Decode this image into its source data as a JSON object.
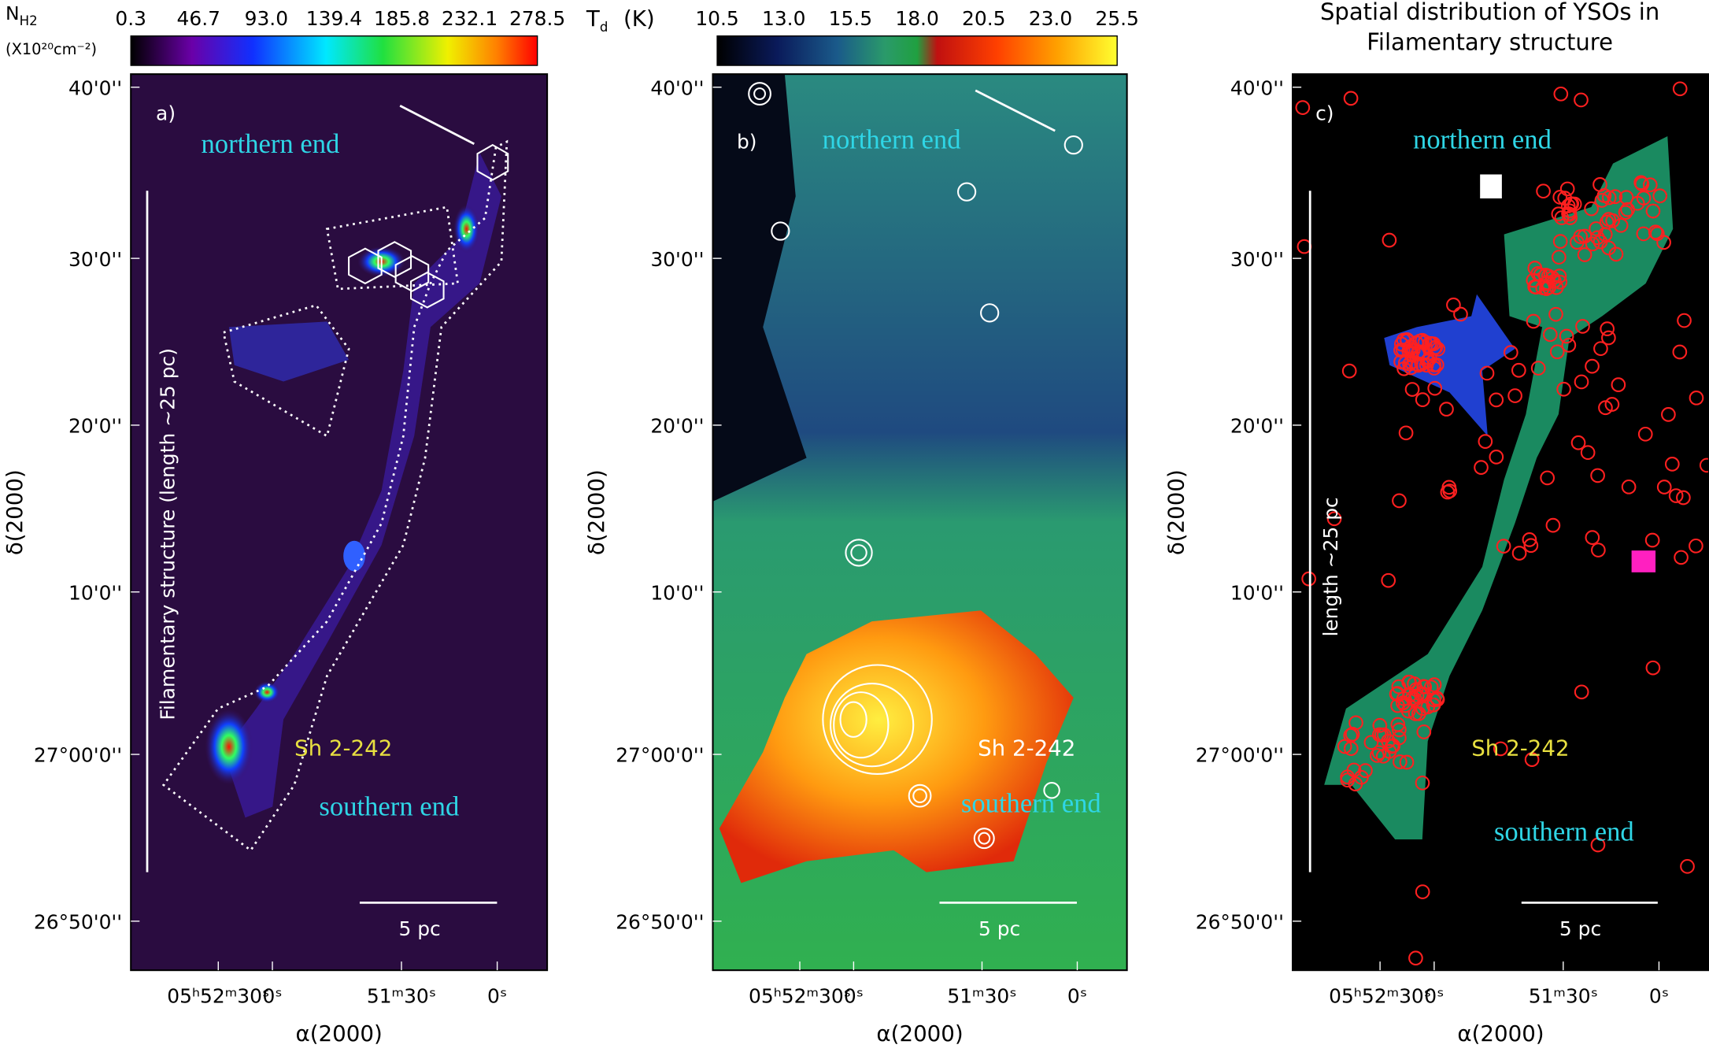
{
  "figure": {
    "panels": [
      {
        "label": "a)",
        "colorbar": {
          "quantity": "N",
          "subscript": "H2",
          "unit": "(X10²⁰cm⁻²)",
          "ticks": [
            "0.3",
            "46.7",
            "93.0",
            "139.4",
            "185.8",
            "232.1",
            "278.5"
          ]
        },
        "yaxis_label": "δ(2000)",
        "xaxis_label": "α(2000)",
        "yticks": [
          "40'0''",
          "30'0''",
          "20'0''",
          "10'0''",
          "27°00'0''",
          "26°50'0''"
        ],
        "xticks": [
          "05ʰ52ᵐ30ˢ",
          "0ˢ",
          "51ᵐ30ˢ",
          "0ˢ"
        ],
        "annotations": {
          "north": "northern end",
          "south": "southern end",
          "region": "Sh 2-242",
          "length": "Filamentary structure (length ~25 pc)",
          "scale": "5 pc"
        }
      },
      {
        "label": "b)",
        "colorbar": {
          "quantity": "T",
          "subscript": "d",
          "unit": "(K)",
          "ticks": [
            "10.5",
            "13.0",
            "15.5",
            "18.0",
            "20.5",
            "23.0",
            "25.5"
          ]
        },
        "yaxis_label": "δ(2000)",
        "xaxis_label": "α(2000)",
        "yticks": [
          "40'0''",
          "30'0''",
          "20'0''",
          "10'0''",
          "27°00'0''",
          "26°50'0''"
        ],
        "xticks": [
          "05ʰ52ᵐ30ˢ",
          "0ˢ",
          "51ᵐ30ˢ",
          "0ˢ"
        ],
        "annotations": {
          "north": "northern end",
          "south": "southern end",
          "region": "Sh 2-242",
          "scale": "5 pc"
        }
      },
      {
        "label": "c)",
        "title": [
          "Spatial distribution of YSOs in",
          "Filamentary structure"
        ],
        "yaxis_label": "δ(2000)",
        "xaxis_label": "α(2000)",
        "yticks": [
          "40'0''",
          "30'0''",
          "20'0''",
          "10'0''",
          "27°00'0''",
          "26°50'0''"
        ],
        "xticks": [
          "05ʰ52ᵐ30ˢ",
          "0ˢ",
          "51ᵐ30ˢ",
          "0ˢ"
        ],
        "annotations": {
          "north": "northern end",
          "south": "southern end",
          "region": "Sh 2-242",
          "length": "length ~25 pc",
          "scale": "5 pc"
        }
      }
    ]
  }
}
